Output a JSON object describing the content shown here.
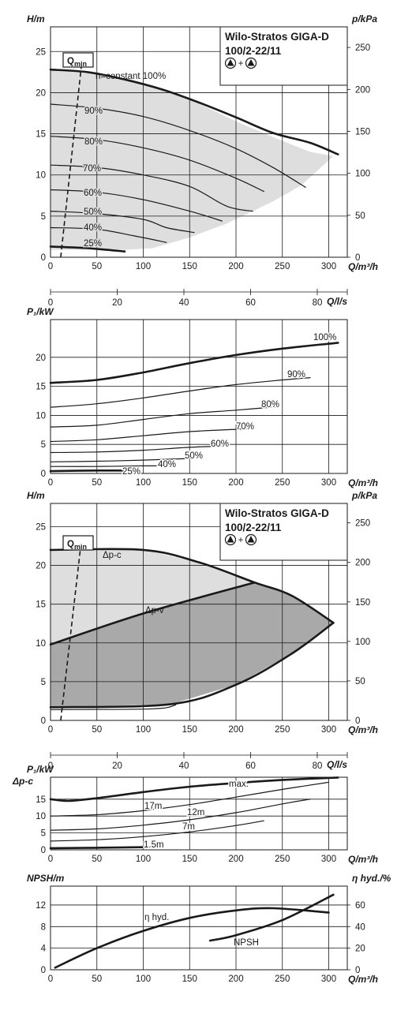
{
  "colors": {
    "light_fill": "#dedede",
    "dark_fill": "#a9a9a9",
    "line": "#1a1a1a"
  },
  "chart_data": [
    {
      "id": "h1",
      "type": "line",
      "title": "Wilo-Stratos GIGA-D",
      "subtitle": "100/2-22/11",
      "title_symbol": "▲+▲",
      "ylabel": "H/m",
      "ylabel2": "p/kPa",
      "xlabel": "Q/m³/h",
      "xlim": [
        0,
        320
      ],
      "ylim": [
        0,
        28
      ],
      "y2lim": [
        0,
        274.6
      ],
      "xticks": [
        0,
        50,
        100,
        150,
        200,
        250,
        300
      ],
      "yticks": [
        0,
        5,
        10,
        15,
        20,
        25
      ],
      "y2ticks": [
        0,
        50,
        100,
        150,
        200,
        250
      ],
      "qmin_label": "Q",
      "qmin_sub": "min",
      "envelope": [
        [
          0,
          22.8
        ],
        [
          40,
          22.5
        ],
        [
          80,
          21.6
        ],
        [
          120,
          20.4
        ],
        [
          160,
          18.7
        ],
        [
          200,
          16.5
        ],
        [
          240,
          14.6
        ],
        [
          280,
          12.8
        ],
        [
          305,
          12.3
        ],
        [
          270,
          8.7
        ],
        [
          240,
          6.8
        ],
        [
          190,
          4.1
        ],
        [
          150,
          2.4
        ],
        [
          110,
          1.1
        ],
        [
          80,
          0.9
        ],
        [
          0,
          0.9
        ]
      ],
      "series": [
        {
          "name": "n=constant 100%",
          "width": 2.6,
          "points": [
            [
              0,
              22.8
            ],
            [
              40,
              22.5
            ],
            [
              80,
              21.6
            ],
            [
              120,
              20.4
            ],
            [
              160,
              18.8
            ],
            [
              200,
              17.0
            ],
            [
              240,
              15.1
            ],
            [
              280,
              13.9
            ],
            [
              310,
              12.5
            ]
          ]
        },
        {
          "name": "90%",
          "width": 1.2,
          "points": [
            [
              0,
              18.6
            ],
            [
              50,
              18.1
            ],
            [
              100,
              17.1
            ],
            [
              150,
              15.4
            ],
            [
              200,
              13.2
            ],
            [
              240,
              10.9
            ],
            [
              275,
              8.5
            ]
          ]
        },
        {
          "name": "80%",
          "width": 1.2,
          "points": [
            [
              0,
              14.7
            ],
            [
              50,
              14.3
            ],
            [
              100,
              13.3
            ],
            [
              150,
              11.8
            ],
            [
              200,
              9.6
            ],
            [
              230,
              8.0
            ]
          ]
        },
        {
          "name": "70%",
          "width": 1.2,
          "points": [
            [
              0,
              11.2
            ],
            [
              50,
              10.9
            ],
            [
              100,
              10.0
            ],
            [
              150,
              8.6
            ],
            [
              190,
              6.2
            ],
            [
              218,
              5.6
            ]
          ]
        },
        {
          "name": "60%",
          "width": 1.2,
          "points": [
            [
              0,
              8.2
            ],
            [
              50,
              7.9
            ],
            [
              100,
              7.0
            ],
            [
              150,
              5.6
            ],
            [
              185,
              4.4
            ]
          ]
        },
        {
          "name": "50%",
          "width": 1.2,
          "points": [
            [
              0,
              5.6
            ],
            [
              50,
              5.3
            ],
            [
              100,
              4.6
            ],
            [
              125,
              3.6
            ],
            [
              155,
              3.0
            ]
          ]
        },
        {
          "name": "40%",
          "width": 1.2,
          "points": [
            [
              0,
              3.6
            ],
            [
              50,
              3.4
            ],
            [
              90,
              2.6
            ],
            [
              125,
              1.8
            ]
          ]
        },
        {
          "name": "25%",
          "width": 2.6,
          "points": [
            [
              0,
              1.3
            ],
            [
              40,
              1.1
            ],
            [
              80,
              0.7
            ]
          ]
        }
      ],
      "qmin_line": [
        [
          11,
          0
        ],
        [
          34,
          24
        ]
      ]
    },
    {
      "id": "ls1",
      "type": "axis",
      "xlabel": "Q/l/s",
      "xlim": [
        0,
        89
      ],
      "xticks": [
        0,
        20,
        40,
        60,
        80
      ]
    },
    {
      "id": "p1",
      "type": "line",
      "ylabel": "P₁/kW",
      "xlabel": "Q/m³/h",
      "xlim": [
        0,
        320
      ],
      "ylim": [
        0,
        26.5
      ],
      "xticks": [
        0,
        50,
        100,
        150,
        200,
        250,
        300
      ],
      "yticks": [
        0,
        5,
        10,
        15,
        20
      ],
      "series": [
        {
          "name": "100%",
          "width": 2.6,
          "points": [
            [
              0,
              15.6
            ],
            [
              50,
              16.1
            ],
            [
              100,
              17.4
            ],
            [
              150,
              19.0
            ],
            [
              200,
              20.4
            ],
            [
              250,
              21.5
            ],
            [
              310,
              22.5
            ]
          ]
        },
        {
          "name": "90%",
          "width": 1.2,
          "points": [
            [
              0,
              11.4
            ],
            [
              50,
              12.0
            ],
            [
              100,
              13.0
            ],
            [
              150,
              14.2
            ],
            [
              200,
              15.3
            ],
            [
              250,
              16.1
            ],
            [
              280,
              16.5
            ]
          ]
        },
        {
          "name": "80%",
          "width": 1.2,
          "points": [
            [
              0,
              8.0
            ],
            [
              50,
              8.3
            ],
            [
              100,
              9.3
            ],
            [
              150,
              10.3
            ],
            [
              200,
              10.9
            ],
            [
              245,
              11.5
            ]
          ]
        },
        {
          "name": "70%",
          "width": 1.2,
          "points": [
            [
              0,
              5.5
            ],
            [
              50,
              5.8
            ],
            [
              100,
              6.5
            ],
            [
              150,
              7.2
            ],
            [
              200,
              7.6
            ],
            [
              218,
              7.7
            ]
          ]
        },
        {
          "name": "60%",
          "width": 1.2,
          "points": [
            [
              0,
              3.6
            ],
            [
              50,
              3.7
            ],
            [
              100,
              4.0
            ],
            [
              150,
              4.5
            ],
            [
              185,
              4.7
            ]
          ]
        },
        {
          "name": "50%",
          "width": 1.2,
          "points": [
            [
              0,
              2.0
            ],
            [
              50,
              2.1
            ],
            [
              100,
              2.3
            ],
            [
              155,
              2.6
            ]
          ]
        },
        {
          "name": "40%",
          "width": 1.2,
          "points": [
            [
              0,
              1.2
            ],
            [
              50,
              1.2
            ],
            [
              100,
              1.3
            ],
            [
              125,
              1.3
            ]
          ]
        },
        {
          "name": "25%",
          "width": 2.6,
          "points": [
            [
              0,
              0.4
            ],
            [
              50,
              0.5
            ],
            [
              78,
              0.5
            ]
          ]
        }
      ]
    },
    {
      "id": "h2",
      "type": "area",
      "title": "Wilo-Stratos GIGA-D",
      "subtitle": "100/2-22/11",
      "title_symbol": "▲+▲",
      "ylabel": "H/m",
      "ylabel2": "p/kPa",
      "xlabel": "Q/m³/h",
      "xlim": [
        0,
        320
      ],
      "ylim": [
        0,
        28
      ],
      "y2lim": [
        0,
        274.6
      ],
      "xticks": [
        0,
        50,
        100,
        150,
        200,
        250,
        300
      ],
      "yticks": [
        0,
        5,
        10,
        15,
        20,
        25
      ],
      "y2ticks": [
        0,
        50,
        100,
        150,
        200,
        250
      ],
      "qmin_label": "Q",
      "qmin_sub": "min",
      "label_dpc": "Δp-c",
      "label_dpv": "Δp-v",
      "light_region": [
        [
          0,
          22.0
        ],
        [
          100,
          22.0
        ],
        [
          160,
          20.4
        ],
        [
          220,
          17.8
        ],
        [
          100,
          13.8
        ],
        [
          0,
          9.8
        ]
      ],
      "dark_region": [
        [
          0,
          9.8
        ],
        [
          100,
          13.8
        ],
        [
          220,
          17.8
        ],
        [
          260,
          16.1
        ],
        [
          305,
          12.6
        ],
        [
          260,
          8.6
        ],
        [
          200,
          4.6
        ],
        [
          130,
          2.1
        ],
        [
          0,
          1.7
        ]
      ],
      "series": [
        {
          "name": "Δp-c",
          "width": 2.6,
          "points": [
            [
              0,
              22.0
            ],
            [
              100,
              22.0
            ],
            [
              160,
              20.4
            ],
            [
              220,
              17.8
            ],
            [
              260,
              16.1
            ],
            [
              305,
              12.6
            ]
          ]
        },
        {
          "name": "Δp-v",
          "width": 2.6,
          "points": [
            [
              0,
              9.8
            ],
            [
              100,
              13.8
            ],
            [
              220,
              17.8
            ]
          ]
        },
        {
          "name": "min-curve",
          "width": 2.6,
          "points": [
            [
              305,
              12.6
            ],
            [
              260,
              8.6
            ],
            [
              200,
              4.6
            ],
            [
              130,
              2.1
            ],
            [
              0,
              1.7
            ]
          ]
        },
        {
          "name": "min-curve-lower",
          "width": 1.2,
          "points": [
            [
              0,
              1.4
            ],
            [
              110,
              1.5
            ],
            [
              135,
              2.0
            ]
          ]
        }
      ],
      "qmin_line": [
        [
          11,
          0
        ],
        [
          34,
          24
        ]
      ]
    },
    {
      "id": "ls2",
      "type": "axis",
      "xlabel": "Q/l/s",
      "xlim": [
        0,
        89
      ],
      "xticks": [
        0,
        20,
        40,
        60,
        80
      ]
    },
    {
      "id": "p2",
      "type": "line",
      "ylabel": "P₁/kW",
      "ylabel_top": "Δp-c",
      "xlabel": "Q/m³/h",
      "xlim": [
        0,
        320
      ],
      "ylim": [
        0,
        21.5
      ],
      "xticks": [
        0,
        50,
        100,
        150,
        200,
        250,
        300
      ],
      "yticks": [
        0,
        5,
        10,
        15
      ],
      "series": [
        {
          "name": "max.",
          "width": 2.6,
          "points": [
            [
              0,
              15.0
            ],
            [
              20,
              14.5
            ],
            [
              50,
              15.3
            ],
            [
              100,
              17.1
            ],
            [
              150,
              18.7
            ],
            [
              200,
              19.8
            ],
            [
              250,
              20.7
            ],
            [
              310,
              21.4
            ]
          ]
        },
        {
          "name": "17m",
          "width": 1.2,
          "points": [
            [
              0,
              10.0
            ],
            [
              50,
              10.4
            ],
            [
              100,
              11.6
            ],
            [
              150,
              13.4
            ],
            [
              200,
              15.6
            ],
            [
              250,
              17.9
            ],
            [
              300,
              20.0
            ]
          ]
        },
        {
          "name": "12m",
          "width": 1.2,
          "points": [
            [
              0,
              5.8
            ],
            [
              50,
              6.2
            ],
            [
              100,
              7.3
            ],
            [
              150,
              8.9
            ],
            [
              200,
              11.0
            ],
            [
              250,
              13.6
            ],
            [
              280,
              15.0
            ]
          ]
        },
        {
          "name": "7m",
          "width": 1.2,
          "points": [
            [
              0,
              2.6
            ],
            [
              50,
              3.0
            ],
            [
              100,
              3.9
            ],
            [
              150,
              5.3
            ],
            [
              200,
              7.2
            ],
            [
              230,
              8.6
            ]
          ]
        },
        {
          "name": "1.5m",
          "width": 2.6,
          "points": [
            [
              0,
              0.5
            ],
            [
              50,
              0.6
            ],
            [
              105,
              0.8
            ]
          ]
        }
      ]
    },
    {
      "id": "n1",
      "type": "line",
      "ylabel": "NPSH/m",
      "ylabel2": "η hyd./%",
      "xlabel": "Q/m³/h",
      "xlim": [
        0,
        320
      ],
      "ylim": [
        0,
        15.5
      ],
      "y2lim": [
        0,
        77.5
      ],
      "xticks": [
        0,
        50,
        100,
        150,
        200,
        250,
        300
      ],
      "yticks": [
        0,
        4,
        8,
        12
      ],
      "y2ticks": [
        0,
        20,
        40,
        60
      ],
      "series": [
        {
          "name": "η hyd.",
          "axis": "right",
          "width": 2.6,
          "points": [
            [
              5,
              2
            ],
            [
              50,
              20
            ],
            [
              100,
              36
            ],
            [
              150,
              48
            ],
            [
              200,
              55
            ],
            [
              240,
              57
            ],
            [
              300,
              53
            ]
          ]
        },
        {
          "name": "NPSH",
          "axis": "left",
          "width": 2.6,
          "points": [
            [
              172,
              5.4
            ],
            [
              200,
              6.4
            ],
            [
              250,
              9.2
            ],
            [
              305,
              13.9
            ]
          ]
        }
      ]
    }
  ],
  "labels": {
    "h1_curve_labels": [
      "n=constant 100%",
      "90%",
      "80%",
      "70%",
      "60%",
      "50%",
      "40%",
      "25%"
    ],
    "p1_curve_labels": [
      "100%",
      "90%",
      "80%",
      "70%",
      "60%",
      "50%",
      "40%",
      "25%"
    ],
    "p2_curve_labels": [
      "max.",
      "17m",
      "12m",
      "7m",
      "1.5m"
    ],
    "n1_curve_labels": [
      "η hyd.",
      "NPSH"
    ]
  }
}
